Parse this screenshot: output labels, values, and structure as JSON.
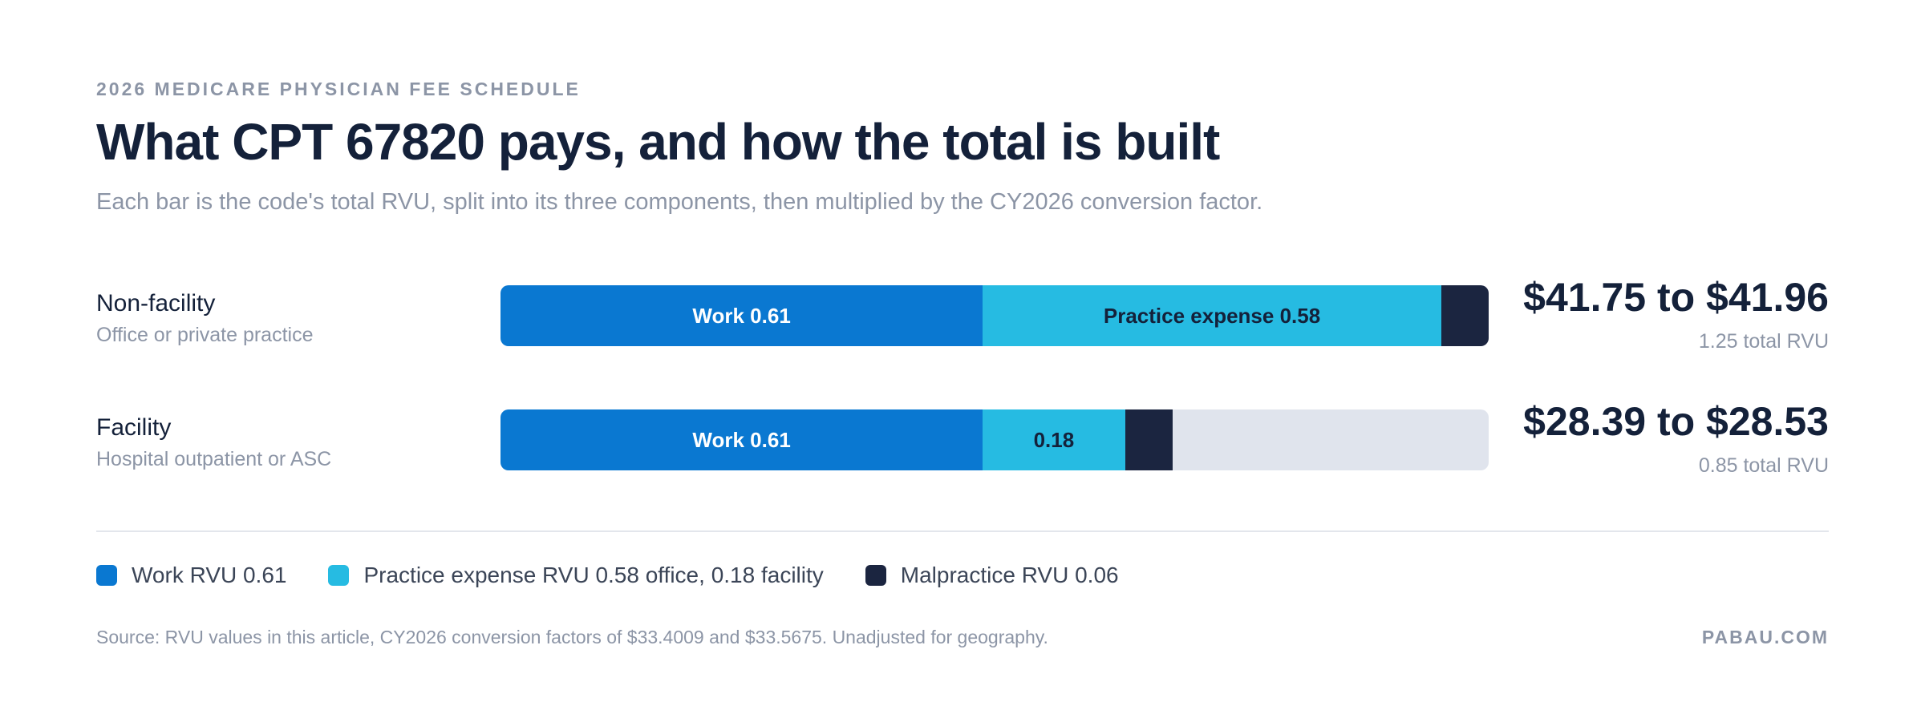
{
  "header": {
    "eyebrow": "2026 MEDICARE PHYSICIAN FEE SCHEDULE",
    "title": "What CPT 67820 pays, and how the total is built",
    "subtitle": "Each bar is the code's total RVU, split into its three components, then multiplied by the CY2026 conversion factor."
  },
  "colors": {
    "work": "#0a78d1",
    "practice_expense": "#26bbe2",
    "malpractice": "#1b2540",
    "track": "#e0e4ed"
  },
  "chart_data": {
    "type": "bar",
    "orientation": "horizontal",
    "stacked": true,
    "scale_max": 1.25,
    "categories": [
      "Non-facility",
      "Facility"
    ],
    "series": [
      {
        "name": "Work RVU",
        "values": [
          0.61,
          0.61
        ]
      },
      {
        "name": "Practice expense RVU",
        "values": [
          0.58,
          0.18
        ]
      },
      {
        "name": "Malpractice RVU",
        "values": [
          0.06,
          0.06
        ]
      }
    ],
    "rows": [
      {
        "label": "Non-facility",
        "sub": "Office or private practice",
        "work": 0.61,
        "pe": 0.58,
        "mp": 0.06,
        "work_label": "Work 0.61",
        "pe_label": "Practice expense 0.58",
        "price": "$41.75 to $41.96",
        "rvu_total": "1.25 total RVU"
      },
      {
        "label": "Facility",
        "sub": "Hospital outpatient or ASC",
        "work": 0.61,
        "pe": 0.18,
        "mp": 0.06,
        "work_label": "Work 0.61",
        "pe_label": "0.18",
        "price": "$28.39 to $28.53",
        "rvu_total": "0.85 total RVU"
      }
    ],
    "legend": [
      {
        "label": "Work RVU 0.61",
        "key": "work"
      },
      {
        "label": "Practice expense RVU 0.58 office, 0.18 facility",
        "key": "practice_expense"
      },
      {
        "label": "Malpractice RVU 0.06",
        "key": "malpractice"
      }
    ]
  },
  "footer": {
    "source": "Source: RVU values in this article, CY2026 conversion factors of $33.4009 and $33.5675. Unadjusted for geography.",
    "brand": "PABAU.COM"
  }
}
